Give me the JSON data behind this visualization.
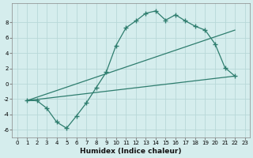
{
  "xlabel": "Humidex (Indice chaleur)",
  "bg_color": "#d5eded",
  "line_color": "#2e7d6e",
  "grid_color": "#b8d8d8",
  "xlim": [
    -0.5,
    23.5
  ],
  "ylim": [
    -7,
    10.5
  ],
  "xticks": [
    0,
    1,
    2,
    3,
    4,
    5,
    6,
    7,
    8,
    9,
    10,
    11,
    12,
    13,
    14,
    15,
    16,
    17,
    18,
    19,
    20,
    21,
    22,
    23
  ],
  "yticks": [
    -6,
    -4,
    -2,
    0,
    2,
    4,
    6,
    8
  ],
  "line1_x": [
    1,
    2,
    3,
    4,
    5,
    6,
    7,
    8,
    9,
    10,
    11,
    12,
    13,
    14,
    15,
    16,
    17,
    18,
    19,
    20,
    21,
    22
  ],
  "line1_y": [
    -2.2,
    -2.2,
    -3.2,
    -5.0,
    -5.8,
    -4.2,
    -2.5,
    -0.5,
    1.5,
    5.0,
    7.3,
    8.2,
    9.2,
    9.5,
    8.3,
    9.0,
    8.2,
    7.5,
    7.0,
    5.2,
    2.1,
    1.0
  ],
  "line2_x": [
    1,
    22
  ],
  "line2_y": [
    -2.2,
    7.0
  ],
  "line3_x": [
    1,
    22
  ],
  "line3_y": [
    -2.2,
    1.0
  ],
  "xlabel_fontsize": 6.5,
  "tick_fontsize": 5.0
}
